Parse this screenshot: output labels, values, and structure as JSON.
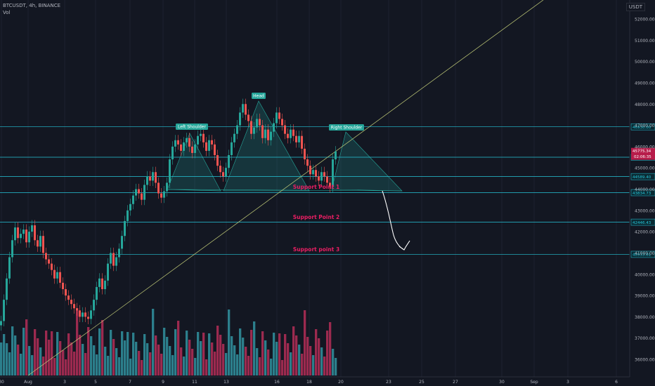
{
  "header": {
    "symbol": "BTCUSDT, 4h, BINANCE",
    "volume_label": "Vol",
    "currency": "USDT"
  },
  "colors": {
    "background": "#131722",
    "up": "#26a69a",
    "down": "#ef5350",
    "up_vol": "#2c7f8c",
    "down_vol": "#9c2a4f",
    "level": "#26c6da",
    "trend": "#c5cf7a",
    "label_pink": "#e91e63",
    "pattern": "#26a69a"
  },
  "chart_data": {
    "type": "candlestick",
    "title": "",
    "y_axis": {
      "ylim": [
        35500,
        52600
      ],
      "ticks": [
        "36000.00",
        "37000.00",
        "38000.00",
        "39000.00",
        "40000.00",
        "41000.00",
        "42000.00",
        "43000.00",
        "44000.00",
        "45000.00",
        "46000.00",
        "47000.00",
        "48000.00",
        "49000.00",
        "50000.00",
        "51000.00",
        "52000.00"
      ]
    },
    "x_axis": {
      "labels": [
        "30",
        "Aug",
        "3",
        "5",
        "7",
        "9",
        "11",
        "13",
        "16",
        "18",
        "20",
        "23",
        "25",
        "27",
        "30",
        "Sep",
        "3",
        "6"
      ]
    },
    "levels": [
      {
        "name": "resistance-level",
        "value": 46930.0,
        "label": "46930.00"
      },
      {
        "name": "price-level",
        "value": 45500.0,
        "label": "45500.00"
      },
      {
        "name": "neckline-level",
        "value": 44589.4,
        "label": "44589.40"
      },
      {
        "name": "support-point-1",
        "value": 43834.73,
        "label": "43834.73",
        "text": "Support Point 1"
      },
      {
        "name": "support-point-2",
        "value": 42446.43,
        "label": "42446.43",
        "text": "Support Point 2"
      },
      {
        "name": "support-point-3",
        "value": 40933.81,
        "label": "40933.81",
        "text": "Support point 3"
      }
    ],
    "current_price": {
      "value": 45775.34,
      "label": "45775.34",
      "countdown": "02:06:35"
    },
    "pattern_labels": {
      "left": "Left Shoulder",
      "head": "Head",
      "right": "Right Shoulder"
    }
  }
}
